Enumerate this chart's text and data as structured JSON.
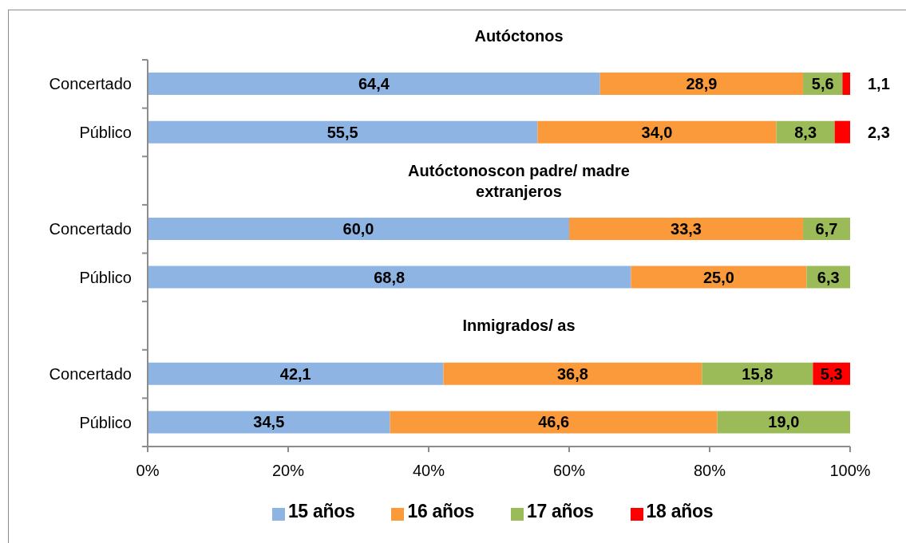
{
  "chart_data": {
    "type": "bar",
    "orientation": "horizontal",
    "stacked": true,
    "annotations": [
      "Autóctonos",
      "Autóctonoscon padre/ madre extranjeros",
      "Inmigrados/ as"
    ],
    "categories": [
      "Concertado",
      "Público",
      null,
      "Concertado",
      "Público",
      null,
      "Concertado",
      "Público"
    ],
    "series": [
      {
        "name": "15 años",
        "color": "#8db4e2",
        "values": [
          64.4,
          55.5,
          null,
          60.0,
          68.8,
          null,
          42.1,
          34.5
        ],
        "value_labels": [
          "64,4",
          "55,5",
          null,
          "60,0",
          "68,8",
          null,
          "42,1",
          "34,5"
        ]
      },
      {
        "name": "16 años",
        "color": "#fb9a3a",
        "values": [
          28.9,
          34.0,
          null,
          33.3,
          25.0,
          null,
          36.8,
          46.6
        ],
        "value_labels": [
          "28,9",
          "34,0",
          null,
          "33,3",
          "25,0",
          null,
          "36,8",
          "46,6"
        ]
      },
      {
        "name": "17 años",
        "color": "#9bbb59",
        "values": [
          5.6,
          8.3,
          null,
          6.7,
          6.3,
          null,
          15.8,
          19.0
        ],
        "value_labels": [
          "5,6",
          "8,3",
          null,
          "6,7",
          "6,3",
          null,
          "15,8",
          "19,0"
        ]
      },
      {
        "name": "18 años",
        "color": "#ff0000",
        "values": [
          1.1,
          2.3,
          null,
          null,
          null,
          null,
          5.3,
          null
        ],
        "value_labels": [
          "1,1",
          "2,3",
          null,
          null,
          null,
          null,
          "5,3",
          null
        ]
      }
    ],
    "xlim": [
      0,
      100
    ],
    "xticks": [
      {
        "value": 0,
        "label": "0%"
      },
      {
        "value": 20,
        "label": "20%"
      },
      {
        "value": 40,
        "label": "40%"
      },
      {
        "value": 60,
        "label": "60%"
      },
      {
        "value": 80,
        "label": "80%"
      },
      {
        "value": 100,
        "label": "100%"
      }
    ],
    "legend": "bottom"
  }
}
